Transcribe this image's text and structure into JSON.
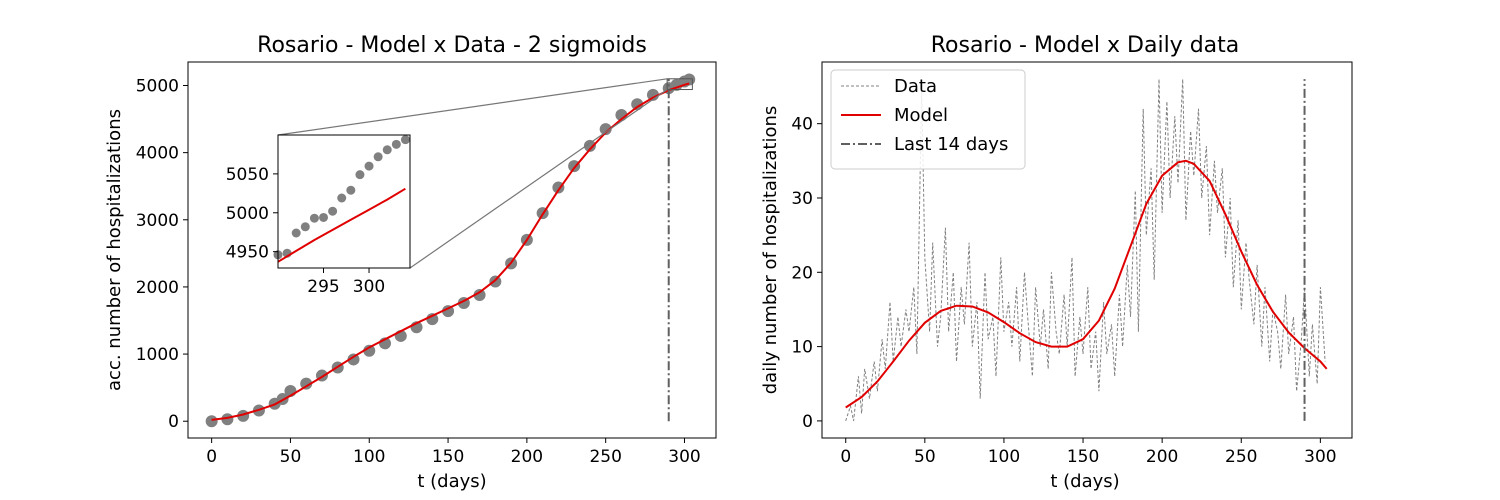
{
  "chart_data": [
    {
      "type": "scatter",
      "title": "Rosario - Model x Data - 2 sigmoids",
      "xlabel": "t (days)",
      "ylabel": "acc. number of hospitalizations",
      "xlim": [
        -15,
        320
      ],
      "ylim": [
        -250,
        5350
      ],
      "xticks": [
        0,
        50,
        100,
        150,
        200,
        250,
        300
      ],
      "yticks": [
        0,
        1000,
        2000,
        3000,
        4000,
        5000
      ],
      "grid": false,
      "series": [
        {
          "kind": "points",
          "color": "#808080",
          "x": [
            0,
            10,
            20,
            30,
            40,
            45,
            50,
            60,
            70,
            80,
            90,
            100,
            110,
            120,
            130,
            140,
            150,
            160,
            170,
            180,
            190,
            200,
            210,
            220,
            230,
            240,
            250,
            260,
            270,
            280,
            290,
            295,
            300,
            303
          ],
          "y": [
            0,
            30,
            80,
            160,
            260,
            330,
            450,
            560,
            680,
            800,
            920,
            1050,
            1160,
            1270,
            1400,
            1520,
            1640,
            1760,
            1880,
            2080,
            2350,
            2700,
            3100,
            3480,
            3800,
            4100,
            4350,
            4560,
            4720,
            4860,
            4960,
            5010,
            5060,
            5090
          ]
        },
        {
          "kind": "line",
          "color": "#e00000",
          "x": [
            0,
            10,
            20,
            30,
            40,
            50,
            60,
            70,
            80,
            90,
            100,
            110,
            120,
            130,
            140,
            150,
            160,
            170,
            180,
            190,
            200,
            210,
            220,
            230,
            240,
            250,
            260,
            270,
            280,
            290,
            300,
            303
          ],
          "y": [
            20,
            50,
            100,
            170,
            250,
            380,
            520,
            660,
            810,
            960,
            1100,
            1220,
            1340,
            1460,
            1570,
            1680,
            1790,
            1920,
            2100,
            2360,
            2700,
            3080,
            3440,
            3770,
            4050,
            4300,
            4500,
            4680,
            4820,
            4930,
            5010,
            5030
          ]
        }
      ],
      "vline": {
        "x": 290,
        "y0": 0,
        "y1": 5100,
        "color": "#606060",
        "style": "dashdot"
      },
      "zoom_box": {
        "x": [
          289,
          305
        ],
        "y": [
          4940,
          5100
        ]
      },
      "inset": {
        "xlim": [
          290,
          304.5
        ],
        "ylim": [
          4929,
          5100
        ],
        "xticks": [
          295,
          300
        ],
        "yticks": [
          4950,
          5000,
          5050
        ],
        "points": {
          "x": [
            290,
            291,
            292,
            293,
            294,
            295,
            296,
            297,
            298,
            299,
            300,
            301,
            302,
            303,
            304
          ],
          "y": [
            4946,
            4948,
            4974,
            4982,
            4993,
            4994,
            5002,
            5019,
            5029,
            5049,
            5060,
            5072,
            5081,
            5088,
            5094
          ]
        },
        "line": {
          "x": [
            290,
            292,
            294,
            296,
            298,
            300,
            302,
            304
          ],
          "y": [
            4937,
            4951,
            4965,
            4978,
            4991,
            5004,
            5017,
            5031
          ]
        }
      }
    },
    {
      "type": "line",
      "title": "Rosario - Model x Daily data",
      "xlabel": "t (days)",
      "ylabel": "daily number of hospitalizations",
      "xlim": [
        -15,
        320
      ],
      "ylim": [
        -2.3,
        48.3
      ],
      "xticks": [
        0,
        50,
        100,
        150,
        200,
        250,
        300
      ],
      "yticks": [
        0,
        10,
        20,
        30,
        40
      ],
      "grid": false,
      "legend": {
        "placement": "top-left",
        "entries": [
          {
            "label": "Data",
            "style": "dashed",
            "color": "#808080"
          },
          {
            "label": "Model",
            "style": "solid",
            "color": "#e00000"
          },
          {
            "label": "Last 14 days",
            "style": "dashdot",
            "color": "#606060"
          }
        ]
      },
      "series": [
        {
          "name": "Data",
          "color": "#808080",
          "style": "dashed",
          "x": [
            0,
            3,
            5,
            8,
            10,
            12,
            15,
            18,
            20,
            23,
            25,
            28,
            30,
            33,
            35,
            38,
            40,
            43,
            45,
            48,
            50,
            53,
            55,
            58,
            60,
            63,
            65,
            68,
            70,
            73,
            75,
            78,
            80,
            83,
            85,
            88,
            90,
            93,
            95,
            98,
            100,
            103,
            105,
            108,
            110,
            113,
            115,
            118,
            120,
            123,
            125,
            128,
            130,
            133,
            135,
            138,
            140,
            143,
            145,
            148,
            150,
            153,
            155,
            158,
            160,
            163,
            165,
            168,
            170,
            173,
            175,
            178,
            180,
            183,
            185,
            188,
            190,
            193,
            195,
            198,
            200,
            203,
            205,
            208,
            210,
            213,
            215,
            218,
            220,
            223,
            225,
            228,
            230,
            233,
            235,
            238,
            240,
            243,
            245,
            248,
            250,
            253,
            255,
            258,
            260,
            263,
            265,
            268,
            270,
            273,
            275,
            278,
            280,
            283,
            285,
            288,
            290,
            293,
            295,
            298,
            300,
            303
          ],
          "y": [
            0,
            2,
            0,
            6,
            1,
            7,
            3,
            8,
            4,
            11,
            7,
            16,
            8,
            14,
            10,
            15,
            12,
            18,
            9,
            45,
            22,
            12,
            24,
            10,
            14,
            26,
            12,
            20,
            8,
            18,
            13,
            24,
            10,
            16,
            3,
            20,
            11,
            14,
            6,
            22,
            12,
            16,
            10,
            18,
            8,
            20,
            14,
            6,
            18,
            10,
            15,
            7,
            20,
            12,
            9,
            17,
            10,
            22,
            6,
            14,
            9,
            18,
            7,
            12,
            4,
            16,
            9,
            13,
            6,
            17,
            10,
            21,
            14,
            31,
            12,
            42,
            25,
            34,
            19,
            46,
            28,
            43,
            30,
            41,
            32,
            46,
            27,
            39,
            33,
            42,
            30,
            37,
            25,
            35,
            28,
            34,
            22,
            30,
            18,
            27,
            15,
            24,
            19,
            13,
            21,
            10,
            18,
            8,
            15,
            12,
            7,
            17,
            9,
            14,
            4,
            11,
            18,
            6,
            13,
            5,
            18,
            8
          ]
        },
        {
          "name": "Model",
          "color": "#e00000",
          "style": "solid",
          "x": [
            0,
            10,
            20,
            30,
            40,
            50,
            60,
            70,
            80,
            90,
            100,
            110,
            120,
            130,
            140,
            150,
            160,
            170,
            180,
            190,
            200,
            210,
            215,
            220,
            230,
            240,
            250,
            260,
            270,
            280,
            290,
            300,
            304
          ],
          "y": [
            1.8,
            3.2,
            5.3,
            8.0,
            10.8,
            13.2,
            14.8,
            15.5,
            15.4,
            14.6,
            13.3,
            11.8,
            10.6,
            10.0,
            10.0,
            11.0,
            13.5,
            17.8,
            23.5,
            29.2,
            33.0,
            34.8,
            35.0,
            34.6,
            32.3,
            27.8,
            22.8,
            18.3,
            14.7,
            11.9,
            9.8,
            8.0,
            7.0
          ]
        }
      ],
      "vline": {
        "x": 290,
        "y0": 0,
        "y1": 46,
        "color": "#606060",
        "style": "dashdot"
      }
    }
  ]
}
